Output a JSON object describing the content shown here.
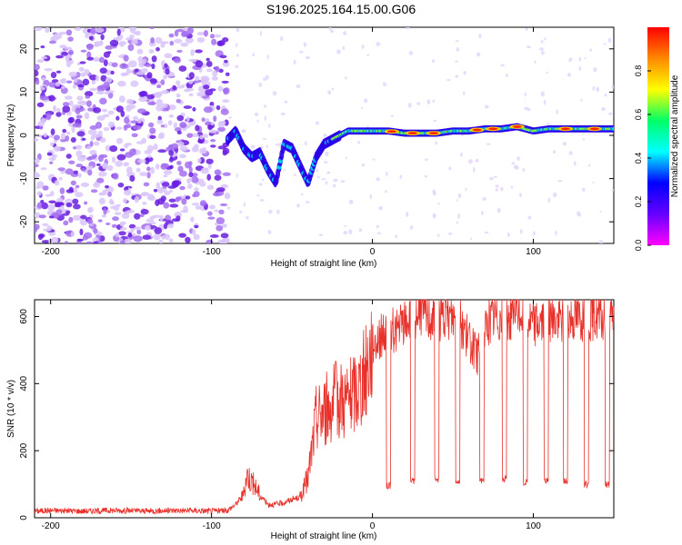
{
  "title": "S196.2025.164.15.00.G06",
  "colors": {
    "snr_line": "#e8312a",
    "noise": "#7b2be0",
    "colormap": [
      "#ff00ff",
      "#6600ff",
      "#0000ff",
      "#00ffff",
      "#00ff66",
      "#ffff00",
      "#ff8800",
      "#ff0000"
    ]
  },
  "chart_data": [
    {
      "type": "heatmap",
      "name": "spectrogram",
      "xlabel": "Height of straight line (km)",
      "ylabel": "Frequency (Hz)",
      "xlim": [
        -210,
        150
      ],
      "ylim": [
        -25,
        25
      ],
      "xticks": [
        -200,
        -100,
        0,
        100
      ],
      "yticks": [
        -20,
        -10,
        0,
        10,
        20
      ],
      "colorbar": {
        "label": "Normalized spectral amplitude",
        "range": [
          0,
          1
        ],
        "ticks": [
          0.0,
          0.2,
          0.4,
          0.6,
          0.8
        ]
      },
      "signal_ridge": {
        "x": [
          -90,
          -85,
          -80,
          -75,
          -70,
          -65,
          -60,
          -55,
          -50,
          -45,
          -40,
          -35,
          -30,
          -25,
          -20,
          -15,
          -10,
          -5,
          0,
          10,
          20,
          30,
          40,
          50,
          60,
          70,
          80,
          90,
          100,
          110,
          120,
          130,
          140,
          150
        ],
        "y": [
          -1,
          1,
          -3,
          -5,
          -4,
          -8,
          -11,
          -2,
          -3,
          -7,
          -11,
          -5,
          -2,
          -1,
          0,
          1,
          1,
          1,
          1,
          1,
          0.5,
          0.5,
          0.5,
          1,
          1,
          1.5,
          1.5,
          2,
          1,
          1.5,
          1.5,
          1.5,
          1.5,
          1.5
        ]
      },
      "noise_region": [
        -210,
        -90
      ]
    },
    {
      "type": "line",
      "name": "snr",
      "xlabel": "Height of straight line (km)",
      "ylabel": "SNR (10 * v/v)",
      "xlim": [
        -210,
        150
      ],
      "ylim": [
        0,
        650
      ],
      "xticks": [
        -200,
        -100,
        0,
        100
      ],
      "yticks": [
        0,
        200,
        400,
        600
      ],
      "series": [
        {
          "x": [
            -210,
            -200,
            -180,
            -160,
            -140,
            -120,
            -100,
            -90,
            -85,
            -80,
            -78,
            -75,
            -70,
            -65,
            -60,
            -55,
            -50,
            -45,
            -40,
            -35,
            -30,
            -25,
            -20,
            -15,
            -10,
            -5,
            0,
            5,
            10,
            15,
            20,
            25,
            30,
            35,
            40,
            45,
            50,
            55,
            60,
            65,
            70,
            75,
            80,
            85,
            90,
            95,
            100,
            105,
            110,
            115,
            120,
            125,
            130,
            135,
            140,
            145,
            150
          ],
          "y": [
            20,
            22,
            20,
            22,
            20,
            22,
            20,
            22,
            40,
            70,
            130,
            110,
            70,
            40,
            40,
            45,
            55,
            60,
            120,
            300,
            320,
            340,
            360,
            350,
            380,
            420,
            520,
            540,
            560,
            560,
            580,
            600,
            620,
            600,
            600,
            600,
            600,
            580,
            530,
            480,
            560,
            600,
            600,
            600,
            620,
            600,
            580,
            590,
            590,
            590,
            600,
            600,
            600,
            600,
            600,
            580,
            600
          ]
        }
      ],
      "dropouts": [
        {
          "x": 10,
          "y": 95
        },
        {
          "x": 25,
          "y": 110
        },
        {
          "x": 40,
          "y": 115
        },
        {
          "x": 53,
          "y": 110
        },
        {
          "x": 68,
          "y": 110
        },
        {
          "x": 82,
          "y": 115
        },
        {
          "x": 95,
          "y": 105
        },
        {
          "x": 108,
          "y": 110
        },
        {
          "x": 120,
          "y": 110
        },
        {
          "x": 133,
          "y": 100
        },
        {
          "x": 146,
          "y": 100
        }
      ]
    }
  ]
}
